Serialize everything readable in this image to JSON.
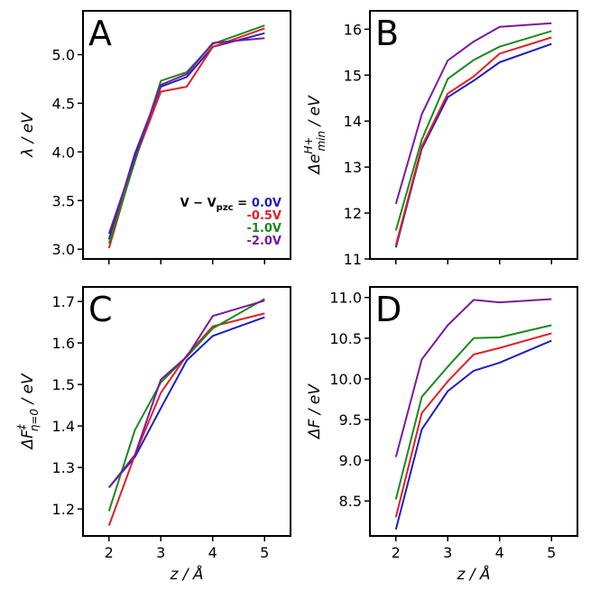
{
  "chart_data": [
    {
      "type": "line",
      "panel": "A",
      "xlabel": "z / Å",
      "ylabel": "λ / eV",
      "x": [
        2,
        2.5,
        3,
        3.5,
        4,
        5
      ],
      "xlim": [
        1.5,
        5.5
      ],
      "xticks": [
        2,
        3,
        4,
        5
      ],
      "ylim": [
        2.9,
        5.45
      ],
      "yticks": [
        3.0,
        3.5,
        4.0,
        4.5,
        5.0
      ],
      "yticklabels": [
        "3.0",
        "3.5",
        "4.0",
        "4.5",
        "5.0"
      ],
      "show_xticklabels": false,
      "legend": {
        "title": "V − V",
        "title_sub": "pzc",
        "title_suffix": " =",
        "entries": [
          "0.0V",
          "-0.5V",
          "-1.0V",
          "-2.0V"
        ]
      },
      "series": [
        {
          "name": "0.0V",
          "color": "#1f1fbf",
          "values": [
            3.1,
            3.98,
            4.67,
            4.77,
            5.08,
            5.22
          ]
        },
        {
          "name": "-0.5V",
          "color": "#e0202a",
          "values": [
            3.01,
            3.92,
            4.62,
            4.67,
            5.08,
            5.27
          ]
        },
        {
          "name": "-1.0V",
          "color": "#1a8a1a",
          "values": [
            3.06,
            3.9,
            4.73,
            4.82,
            5.11,
            5.3
          ]
        },
        {
          "name": "-2.0V",
          "color": "#7a1a9a",
          "values": [
            3.16,
            3.94,
            4.69,
            4.8,
            5.12,
            5.17
          ]
        }
      ]
    },
    {
      "type": "line",
      "panel": "B",
      "xlabel": "z / Å",
      "ylabel": "Δe",
      "ylabel_sup": "H+",
      "ylabel_sub": "min",
      "ylabel_suffix": " / eV",
      "x": [
        2,
        2.5,
        3,
        3.5,
        4,
        5
      ],
      "xlim": [
        1.5,
        5.5
      ],
      "xticks": [
        2,
        3,
        4,
        5
      ],
      "ylim": [
        11,
        16.4
      ],
      "yticks": [
        11,
        12,
        13,
        14,
        15,
        16
      ],
      "yticklabels": [
        "11",
        "12",
        "13",
        "14",
        "15",
        "16"
      ],
      "show_xticklabels": false,
      "series": [
        {
          "name": "0.0V",
          "color": "#1f1fbf",
          "values": [
            11.25,
            13.4,
            14.52,
            14.88,
            15.28,
            15.68
          ]
        },
        {
          "name": "-0.5V",
          "color": "#e0202a",
          "values": [
            11.3,
            13.45,
            14.6,
            14.97,
            15.47,
            15.82
          ]
        },
        {
          "name": "-1.0V",
          "color": "#1a8a1a",
          "values": [
            11.62,
            13.6,
            14.92,
            15.33,
            15.62,
            15.96
          ]
        },
        {
          "name": "-2.0V",
          "color": "#7a1a9a",
          "values": [
            12.2,
            14.15,
            15.32,
            15.73,
            16.05,
            16.13
          ]
        }
      ]
    },
    {
      "type": "line",
      "panel": "C",
      "xlabel": "z / Å",
      "ylabel": "ΔF",
      "ylabel_sup": "‡",
      "ylabel_sub": "η=0",
      "ylabel_suffix": " / eV",
      "x": [
        2,
        2.5,
        3,
        3.5,
        4,
        5
      ],
      "xlim": [
        1.5,
        5.5
      ],
      "xticks": [
        2,
        3,
        4,
        5
      ],
      "xticklabels": [
        "2",
        "3",
        "4",
        "5"
      ],
      "ylim": [
        1.135,
        1.735
      ],
      "yticks": [
        1.2,
        1.3,
        1.4,
        1.5,
        1.6,
        1.7
      ],
      "yticklabels": [
        "1.2",
        "1.3",
        "1.4",
        "1.5",
        "1.6",
        "1.7"
      ],
      "show_xticklabels": true,
      "series": [
        {
          "name": "0.0V",
          "color": "#1f1fbf",
          "values": [
            1.252,
            1.325,
            1.443,
            1.558,
            1.617,
            1.662
          ]
        },
        {
          "name": "-0.5V",
          "color": "#e0202a",
          "values": [
            1.16,
            1.33,
            1.48,
            1.57,
            1.64,
            1.671
          ]
        },
        {
          "name": "-1.0V",
          "color": "#1a8a1a",
          "values": [
            1.195,
            1.39,
            1.505,
            1.567,
            1.635,
            1.706
          ]
        },
        {
          "name": "-2.0V",
          "color": "#7a1a9a",
          "values": [
            1.252,
            1.33,
            1.512,
            1.567,
            1.665,
            1.702
          ]
        }
      ]
    },
    {
      "type": "line",
      "panel": "D",
      "xlabel": "z / Å",
      "ylabel": "ΔF / eV",
      "x": [
        2,
        2.5,
        3,
        3.5,
        4,
        5
      ],
      "xlim": [
        1.5,
        5.5
      ],
      "xticks": [
        2,
        3,
        4,
        5
      ],
      "xticklabels": [
        "2",
        "3",
        "4",
        "5"
      ],
      "ylim": [
        8.07,
        11.13
      ],
      "yticks": [
        8.5,
        9.0,
        9.5,
        10.0,
        10.5,
        11.0
      ],
      "yticklabels": [
        "8.5",
        "9.0",
        "9.5",
        "10.0",
        "10.5",
        "11.0"
      ],
      "show_xticklabels": true,
      "series": [
        {
          "name": "0.0V",
          "color": "#1f1fbf",
          "values": [
            8.15,
            9.38,
            9.85,
            10.1,
            10.2,
            10.47
          ]
        },
        {
          "name": "-0.5V",
          "color": "#e0202a",
          "values": [
            8.3,
            9.58,
            9.97,
            10.3,
            10.38,
            10.56
          ]
        },
        {
          "name": "-1.0V",
          "color": "#1a8a1a",
          "values": [
            8.52,
            9.78,
            10.15,
            10.5,
            10.51,
            10.66
          ]
        },
        {
          "name": "-2.0V",
          "color": "#7a1a9a",
          "values": [
            9.04,
            10.24,
            10.66,
            10.97,
            10.94,
            10.98
          ]
        }
      ]
    }
  ]
}
